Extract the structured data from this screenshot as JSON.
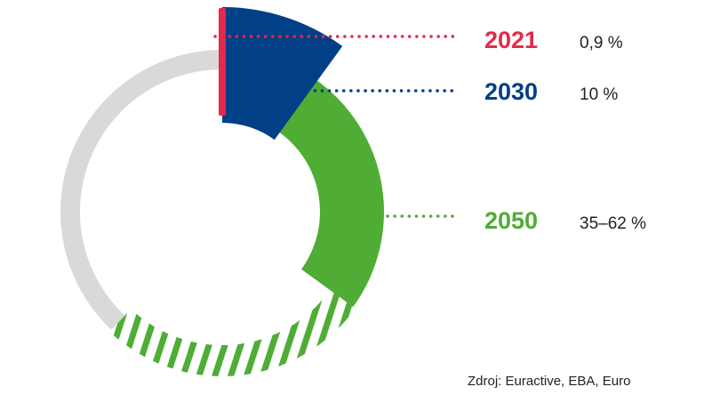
{
  "chart_data": {
    "type": "pie",
    "variant": "donut",
    "colors": {
      "track": "#d9d9d9",
      "2021": "#e5294c",
      "2030": "#013f86",
      "2050": "#4fad35",
      "text": "#222222"
    },
    "slices": [
      {
        "year": "2021",
        "label": "0,9 %",
        "value": 0.9
      },
      {
        "year": "2030",
        "label": "10 %",
        "value": 10
      },
      {
        "year": "2050",
        "label": "35–62 %",
        "value": 35,
        "value_max": 62
      }
    ]
  },
  "source": "Zdroj: Euractive, EBA, Euro"
}
